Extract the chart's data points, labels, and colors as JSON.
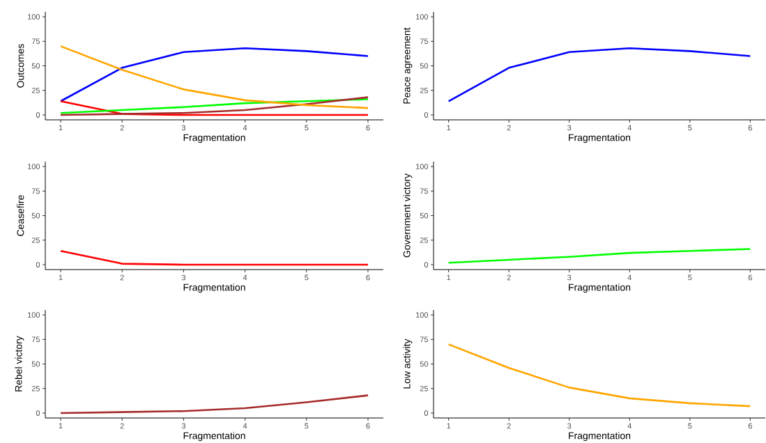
{
  "chart_data": [
    {
      "type": "line",
      "xlabel": "Fragmentation",
      "ylabel": "Outcomes",
      "x": [
        1,
        2,
        3,
        4,
        5,
        6
      ],
      "xlim": [
        0.75,
        6.25
      ],
      "xticks": [
        1,
        2,
        3,
        4,
        5,
        6
      ],
      "ylim": [
        -5,
        105
      ],
      "yticks": [
        0,
        25,
        50,
        75,
        100
      ],
      "series": [
        {
          "color": "#0000ff",
          "values": [
            14,
            48,
            64,
            68,
            65,
            60
          ]
        },
        {
          "color": "#ff0000",
          "values": [
            14,
            1,
            0,
            0,
            0,
            0
          ]
        },
        {
          "color": "#00ff00",
          "values": [
            2,
            5,
            8,
            12,
            14,
            16
          ]
        },
        {
          "color": "#a52a2a",
          "values": [
            0,
            1,
            2,
            5,
            11,
            18
          ]
        },
        {
          "color": "#ffa500",
          "values": [
            70,
            46,
            26,
            15,
            10,
            7
          ]
        }
      ]
    },
    {
      "type": "line",
      "xlabel": "Fragmentation",
      "ylabel": "Peace agreement",
      "x": [
        1,
        2,
        3,
        4,
        5,
        6
      ],
      "xlim": [
        0.75,
        6.25
      ],
      "xticks": [
        1,
        2,
        3,
        4,
        5,
        6
      ],
      "ylim": [
        -5,
        105
      ],
      "yticks": [
        0,
        25,
        50,
        75,
        100
      ],
      "series": [
        {
          "color": "#0000ff",
          "values": [
            14,
            48,
            64,
            68,
            65,
            60
          ]
        }
      ]
    },
    {
      "type": "line",
      "xlabel": "Fragmentation",
      "ylabel": "Ceasefire",
      "x": [
        1,
        2,
        3,
        4,
        5,
        6
      ],
      "xlim": [
        0.75,
        6.25
      ],
      "xticks": [
        1,
        2,
        3,
        4,
        5,
        6
      ],
      "ylim": [
        -5,
        105
      ],
      "yticks": [
        0,
        25,
        50,
        75,
        100
      ],
      "series": [
        {
          "color": "#ff0000",
          "values": [
            14,
            1,
            0,
            0,
            0,
            0
          ]
        }
      ]
    },
    {
      "type": "line",
      "xlabel": "Fragmentation",
      "ylabel": "Government victory",
      "x": [
        1,
        2,
        3,
        4,
        5,
        6
      ],
      "xlim": [
        0.75,
        6.25
      ],
      "xticks": [
        1,
        2,
        3,
        4,
        5,
        6
      ],
      "ylim": [
        -5,
        105
      ],
      "yticks": [
        0,
        25,
        50,
        75,
        100
      ],
      "series": [
        {
          "color": "#00ff00",
          "values": [
            2,
            5,
            8,
            12,
            14,
            16
          ]
        }
      ]
    },
    {
      "type": "line",
      "xlabel": "Fragmentation",
      "ylabel": "Rebel victory",
      "x": [
        1,
        2,
        3,
        4,
        5,
        6
      ],
      "xlim": [
        0.75,
        6.25
      ],
      "xticks": [
        1,
        2,
        3,
        4,
        5,
        6
      ],
      "ylim": [
        -5,
        105
      ],
      "yticks": [
        0,
        25,
        50,
        75,
        100
      ],
      "series": [
        {
          "color": "#a52a2a",
          "values": [
            0,
            1,
            2,
            5,
            11,
            18
          ]
        }
      ]
    },
    {
      "type": "line",
      "xlabel": "Fragmentation",
      "ylabel": "Low activity",
      "x": [
        1,
        2,
        3,
        4,
        5,
        6
      ],
      "xlim": [
        0.75,
        6.25
      ],
      "xticks": [
        1,
        2,
        3,
        4,
        5,
        6
      ],
      "ylim": [
        -5,
        105
      ],
      "yticks": [
        0,
        25,
        50,
        75,
        100
      ],
      "series": [
        {
          "color": "#ffa500",
          "values": [
            70,
            46,
            26,
            15,
            10,
            7
          ]
        }
      ]
    }
  ]
}
